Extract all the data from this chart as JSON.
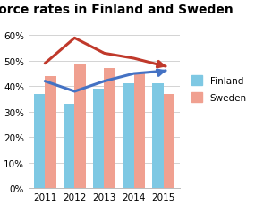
{
  "title": "Divorce rates in Finland and Sweden",
  "years": [
    2011,
    2012,
    2013,
    2014,
    2015
  ],
  "finland_bars": [
    0.37,
    0.33,
    0.39,
    0.41,
    0.41
  ],
  "sweden_bars": [
    0.44,
    0.49,
    0.47,
    0.45,
    0.37
  ],
  "finland_line": [
    0.42,
    0.38,
    0.42,
    0.45,
    0.46
  ],
  "sweden_line": [
    0.49,
    0.59,
    0.53,
    0.51,
    0.48
  ],
  "finland_bar_color": "#7ec8e3",
  "sweden_bar_color": "#f0a090",
  "finland_line_color": "#4472c4",
  "sweden_line_color": "#c0392b",
  "ylim": [
    0,
    0.65
  ],
  "yticks": [
    0.0,
    0.1,
    0.2,
    0.3,
    0.4,
    0.5,
    0.6
  ],
  "ytick_labels": [
    "0%",
    "10%",
    "20%",
    "30%",
    "40%",
    "50%",
    "60%"
  ],
  "background_color": "#ffffff",
  "bar_width": 0.38,
  "title_fontsize": 10,
  "tick_fontsize": 7.5
}
